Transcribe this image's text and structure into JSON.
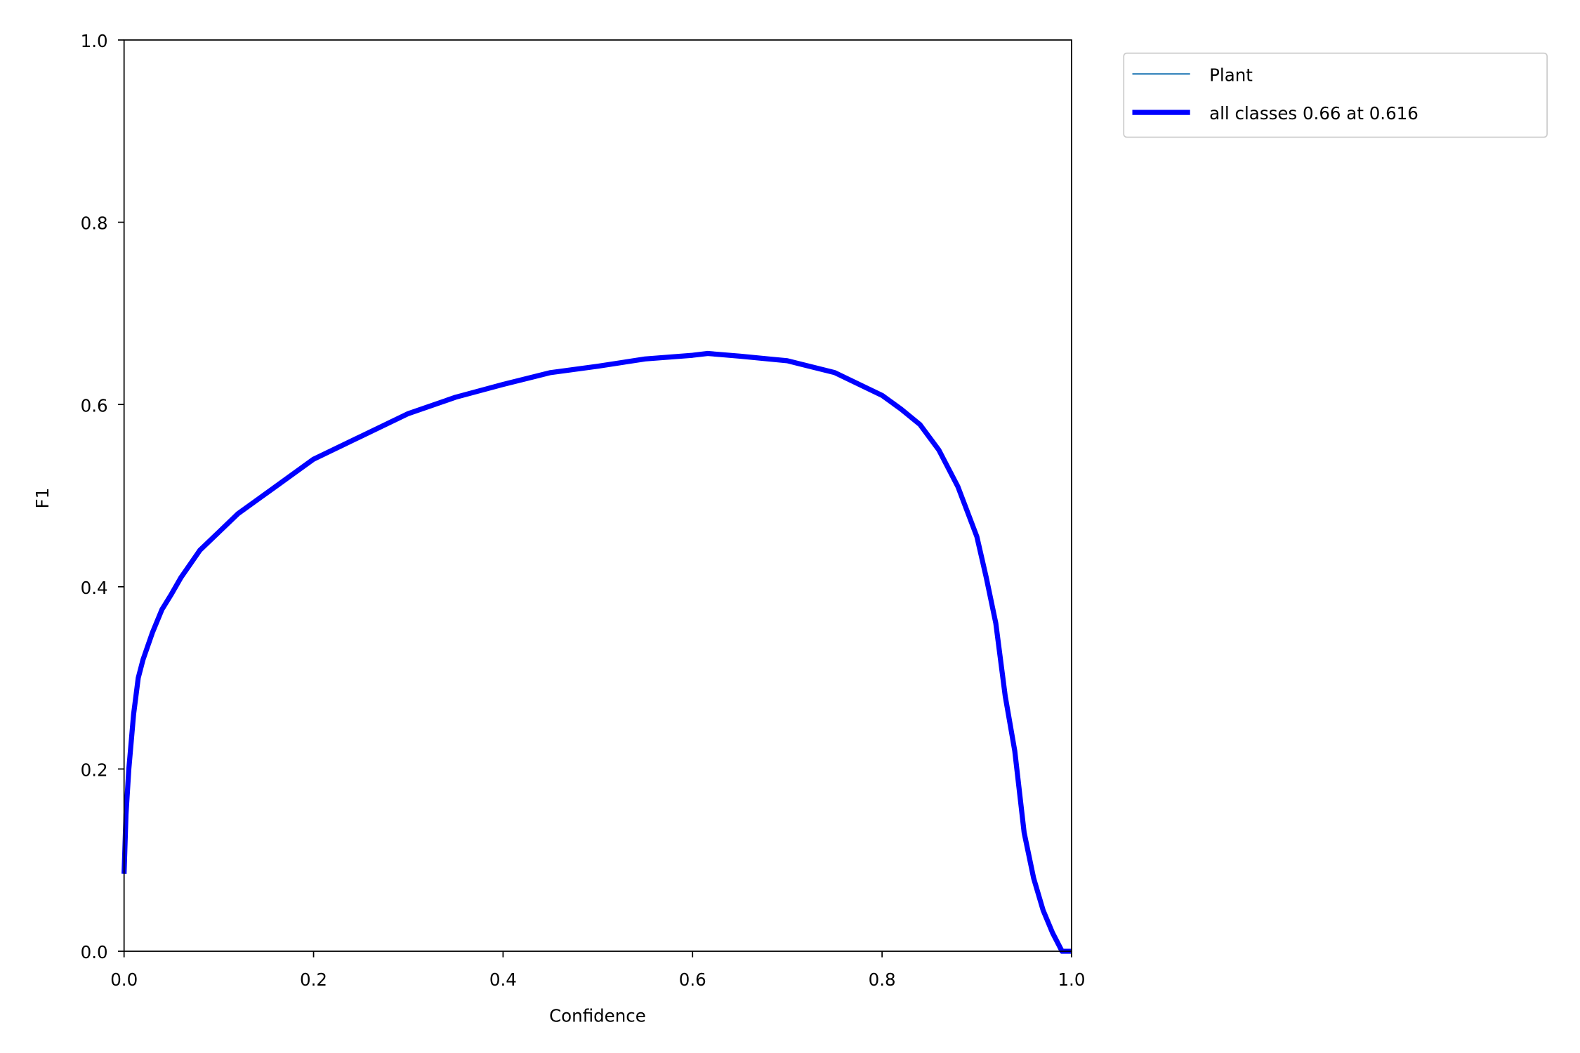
{
  "chart_data": {
    "type": "line",
    "title": "",
    "xlabel": "Confidence",
    "ylabel": "F1",
    "xlim": [
      0,
      1
    ],
    "ylim": [
      0,
      1
    ],
    "grid": false,
    "legend_placement": "outside-top-right",
    "xticks": [
      "0.0",
      "0.2",
      "0.4",
      "0.6",
      "0.8",
      "1.0"
    ],
    "yticks": [
      "0.0",
      "0.2",
      "0.4",
      "0.6",
      "0.8",
      "1.0"
    ],
    "x": [
      0.0,
      0.002,
      0.005,
      0.01,
      0.015,
      0.02,
      0.03,
      0.04,
      0.05,
      0.06,
      0.07,
      0.08,
      0.1,
      0.12,
      0.14,
      0.16,
      0.18,
      0.2,
      0.22,
      0.25,
      0.3,
      0.35,
      0.4,
      0.45,
      0.5,
      0.55,
      0.6,
      0.616,
      0.65,
      0.7,
      0.75,
      0.8,
      0.82,
      0.84,
      0.86,
      0.88,
      0.9,
      0.91,
      0.92,
      0.93,
      0.94,
      0.95,
      0.96,
      0.97,
      0.98,
      0.99,
      1.0
    ],
    "series": [
      {
        "name": "Plant",
        "color": "#1f77b4",
        "values": [
          0.085,
          0.15,
          0.2,
          0.26,
          0.3,
          0.32,
          0.35,
          0.375,
          0.392,
          0.41,
          0.425,
          0.44,
          0.46,
          0.48,
          0.495,
          0.51,
          0.525,
          0.54,
          0.55,
          0.565,
          0.59,
          0.608,
          0.622,
          0.635,
          0.642,
          0.65,
          0.654,
          0.656,
          0.653,
          0.648,
          0.635,
          0.61,
          0.595,
          0.578,
          0.55,
          0.51,
          0.455,
          0.41,
          0.36,
          0.28,
          0.22,
          0.13,
          0.08,
          0.045,
          0.02,
          0.0,
          0.0
        ]
      },
      {
        "name": "all classes 0.66 at 0.616",
        "color": "#0000ff",
        "values": [
          0.085,
          0.15,
          0.2,
          0.26,
          0.3,
          0.32,
          0.35,
          0.375,
          0.392,
          0.41,
          0.425,
          0.44,
          0.46,
          0.48,
          0.495,
          0.51,
          0.525,
          0.54,
          0.55,
          0.565,
          0.59,
          0.608,
          0.622,
          0.635,
          0.642,
          0.65,
          0.654,
          0.656,
          0.653,
          0.648,
          0.635,
          0.61,
          0.595,
          0.578,
          0.55,
          0.51,
          0.455,
          0.41,
          0.36,
          0.28,
          0.22,
          0.13,
          0.08,
          0.045,
          0.02,
          0.0,
          0.0
        ]
      }
    ]
  }
}
